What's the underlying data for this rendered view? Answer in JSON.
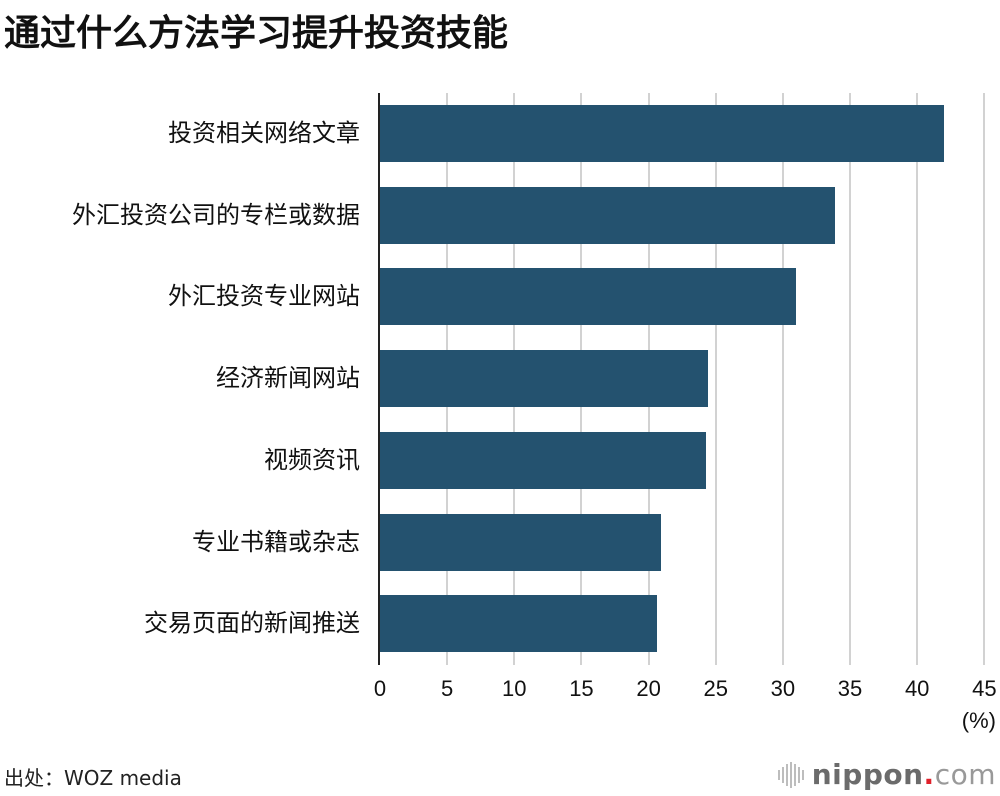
{
  "header": {
    "title": "通过什么方法学习提升投资技能"
  },
  "chart_data": {
    "type": "bar",
    "orientation": "horizontal",
    "title": "通过什么方法学习提升投资技能",
    "xlabel": "(%)",
    "ylabel": "",
    "xlim": [
      0,
      45
    ],
    "grid": true,
    "legend": null,
    "categories": [
      "投资相关网络文章",
      "外汇投资公司的专栏或数据",
      "外汇投资专业网站",
      "经济新闻网站",
      "视频资讯",
      "专业书籍或杂志",
      "交易页面的新闻推送"
    ],
    "values": [
      42.0,
      33.9,
      31.0,
      24.4,
      24.3,
      20.9,
      20.6
    ],
    "color": "#24526f",
    "x_ticks": [
      "0",
      "5",
      "10",
      "15",
      "20",
      "25",
      "30",
      "35",
      "40",
      "45"
    ]
  },
  "axis": {
    "unit": "(%)"
  },
  "footer": {
    "source": "出处：WOZ media",
    "logo": {
      "name": "nippon",
      "dot": ".",
      "suffix": "com"
    }
  }
}
